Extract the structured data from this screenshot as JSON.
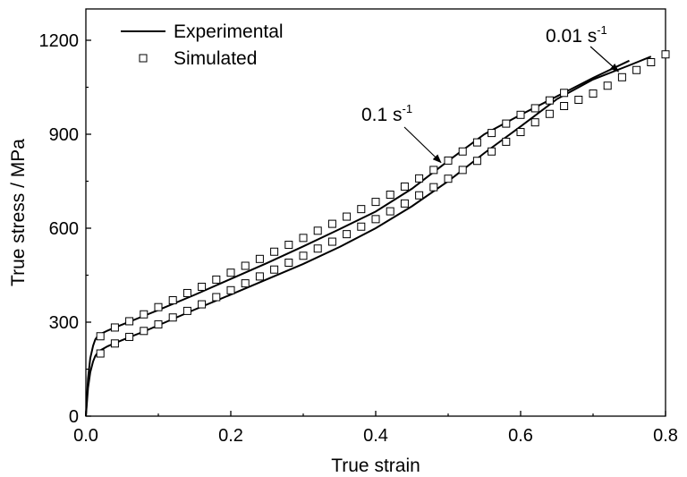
{
  "chart_data": {
    "type": "line",
    "xlabel": "True strain",
    "ylabel": "True stress / MPa",
    "xlim": [
      0.0,
      0.8
    ],
    "ylim": [
      0,
      1300
    ],
    "xticks": [
      0.0,
      0.2,
      0.4,
      0.6,
      0.8
    ],
    "xtick_labels": [
      "0.0",
      "0.2",
      "0.4",
      "0.6",
      "0.8"
    ],
    "yticks": [
      0,
      300,
      600,
      900,
      1200
    ],
    "ytick_labels": [
      "0",
      "300",
      "600",
      "900",
      "1200"
    ],
    "grid": false,
    "legend": {
      "position": "top-left",
      "entries": [
        {
          "label": "Experimental",
          "marker": "line"
        },
        {
          "label": "Simulated",
          "marker": "open-square"
        }
      ]
    },
    "annotations": [
      {
        "text": "0.01 s",
        "superscript": "-1",
        "points_to": [
          0.735,
          1100
        ]
      },
      {
        "text": "0.1 s",
        "superscript": "-1",
        "points_to": [
          0.49,
          810
        ]
      }
    ],
    "series": [
      {
        "name": "Experimental",
        "group": "0.1 s^-1",
        "style": "line",
        "x": [
          0.0,
          0.003,
          0.006,
          0.01,
          0.013,
          0.016,
          0.02,
          0.03,
          0.04,
          0.06,
          0.08,
          0.1,
          0.15,
          0.2,
          0.25,
          0.3,
          0.35,
          0.4,
          0.45,
          0.5,
          0.55,
          0.6,
          0.65,
          0.7,
          0.75
        ],
        "y": [
          0,
          120,
          185,
          225,
          245,
          255,
          262,
          273,
          283,
          301,
          320,
          339,
          387,
          438,
          489,
          542,
          597,
          653,
          726,
          815,
          900,
          962,
          1021,
          1080,
          1135
        ]
      },
      {
        "name": "Experimental",
        "group": "0.01 s^-1",
        "style": "line",
        "x": [
          0.0,
          0.003,
          0.006,
          0.01,
          0.013,
          0.016,
          0.02,
          0.03,
          0.04,
          0.06,
          0.08,
          0.1,
          0.15,
          0.2,
          0.25,
          0.3,
          0.35,
          0.4,
          0.45,
          0.5,
          0.55,
          0.6,
          0.65,
          0.7,
          0.75,
          0.78
        ],
        "y": [
          0,
          90,
          140,
          175,
          192,
          202,
          210,
          223,
          233,
          252,
          270,
          290,
          340,
          388,
          437,
          486,
          540,
          600,
          670,
          750,
          840,
          925,
          1012,
          1075,
          1120,
          1148
        ]
      },
      {
        "name": "Simulated",
        "group": "0.1 s^-1",
        "style": "open-square",
        "x": [
          0.02,
          0.04,
          0.06,
          0.08,
          0.1,
          0.12,
          0.14,
          0.16,
          0.18,
          0.2,
          0.22,
          0.24,
          0.26,
          0.28,
          0.3,
          0.32,
          0.34,
          0.36,
          0.38,
          0.4,
          0.42,
          0.44,
          0.46,
          0.48,
          0.5,
          0.52,
          0.54,
          0.56,
          0.58,
          0.6,
          0.62,
          0.64,
          0.66
        ],
        "y": [
          255,
          283,
          303,
          325,
          348,
          370,
          393,
          413,
          436,
          458,
          480,
          502,
          525,
          547,
          569,
          592,
          614,
          637,
          661,
          684,
          707,
          733,
          759,
          786,
          816,
          845,
          874,
          904,
          934,
          962,
          983,
          1008,
          1032
        ]
      },
      {
        "name": "Simulated",
        "group": "0.01 s^-1",
        "style": "open-square",
        "x": [
          0.02,
          0.04,
          0.06,
          0.08,
          0.1,
          0.12,
          0.14,
          0.16,
          0.18,
          0.2,
          0.22,
          0.24,
          0.26,
          0.28,
          0.3,
          0.32,
          0.34,
          0.36,
          0.38,
          0.4,
          0.42,
          0.44,
          0.46,
          0.48,
          0.5,
          0.52,
          0.54,
          0.56,
          0.58,
          0.6,
          0.62,
          0.64,
          0.66,
          0.68,
          0.7,
          0.72,
          0.74,
          0.76,
          0.78,
          0.8
        ],
        "y": [
          200,
          232,
          253,
          272,
          293,
          315,
          336,
          357,
          380,
          402,
          424,
          446,
          468,
          490,
          512,
          535,
          557,
          581,
          605,
          629,
          654,
          679,
          705,
          731,
          758,
          786,
          815,
          845,
          876,
          907,
          938,
          965,
          990,
          1010,
          1030,
          1055,
          1082,
          1105,
          1130,
          1155
        ]
      }
    ]
  }
}
